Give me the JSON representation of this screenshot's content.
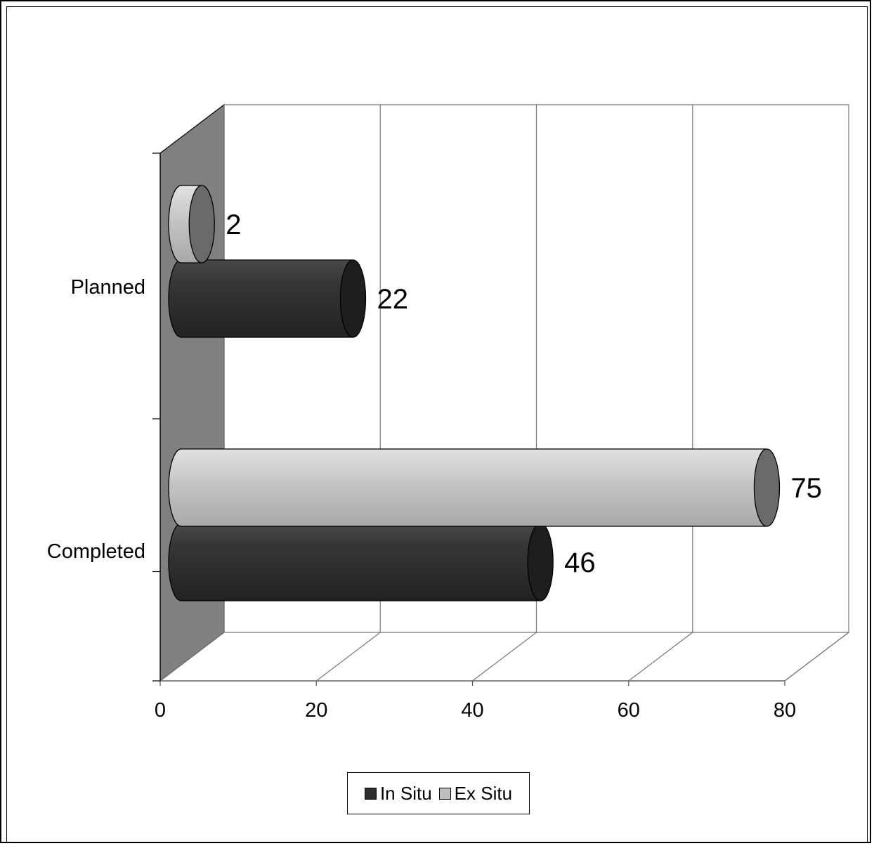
{
  "chart_data": {
    "type": "bar",
    "orientation": "horizontal",
    "style": "3d-cylinder",
    "title": "",
    "xlabel": "",
    "ylabel": "",
    "categories": [
      "Planned",
      "Completed"
    ],
    "xlim": [
      0,
      80
    ],
    "x_ticks": [
      "0",
      "20",
      "40",
      "60",
      "80"
    ],
    "grid": true,
    "legend_position": "bottom",
    "series": [
      {
        "name": "In Situ",
        "values": [
          22,
          46
        ],
        "color": "#2d2d2d"
      },
      {
        "name": "Ex Situ",
        "values": [
          2,
          75
        ],
        "color": "#bdbdbd"
      }
    ]
  },
  "legend": {
    "items": [
      "In Situ",
      "Ex Situ"
    ]
  }
}
